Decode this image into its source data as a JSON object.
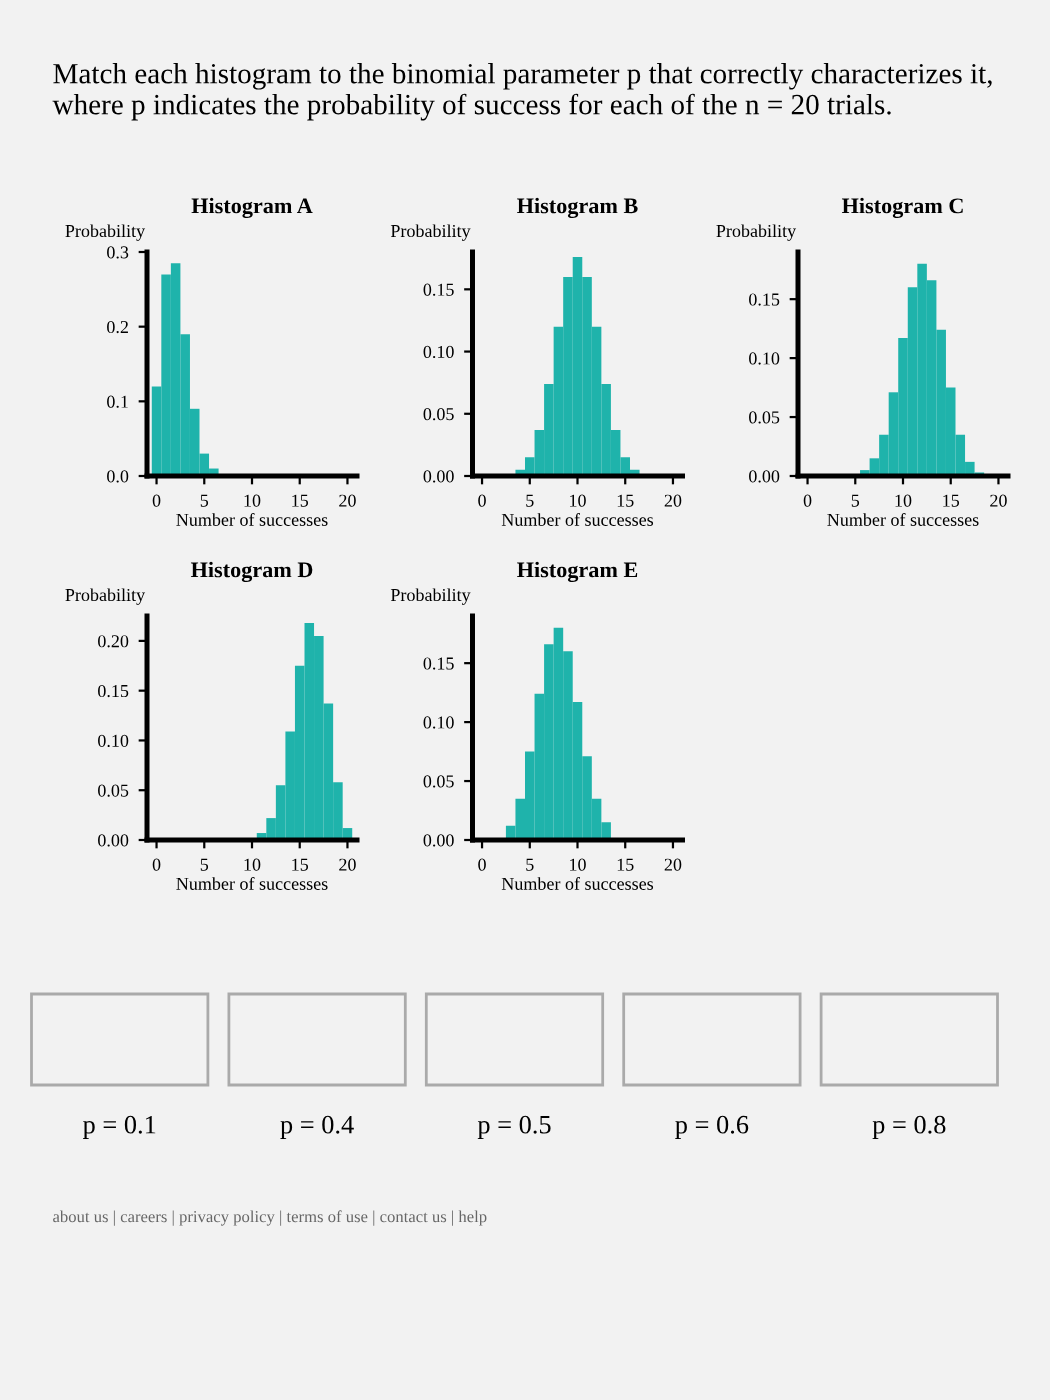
{
  "chart_data": [
    {
      "type": "histogram",
      "title": "Histogram A",
      "xlabel": "Number of successes",
      "ylabel": "Probability",
      "color": "#1fb3ab",
      "bins": [
        -0.5,
        0.5,
        1.5,
        2.5,
        3.5,
        4.5,
        5.5,
        6.5,
        7.5,
        8.5,
        9.5,
        10.5,
        11.5,
        12.5,
        13.5,
        14.5,
        15.5,
        16.5,
        17.5,
        18.5,
        19.5,
        20.5
      ],
      "values": [
        0.12,
        0.27,
        0.285,
        0.19,
        0.09,
        0.03,
        0.01,
        0,
        0,
        0,
        0,
        0,
        0,
        0,
        0,
        0,
        0,
        0,
        0,
        0,
        0
      ],
      "xlim": [
        -1,
        21
      ],
      "ylim": [
        0,
        0.3
      ],
      "xticks": [
        0,
        5,
        10,
        15,
        20
      ],
      "yticks": [
        {
          "value": 0,
          "label": "0.0"
        },
        {
          "value": 0.1,
          "label": "0.1"
        },
        {
          "value": 0.2,
          "label": "0.2"
        },
        {
          "value": 0.3,
          "label": "0.3"
        }
      ]
    },
    {
      "type": "histogram",
      "title": "Histogram B",
      "xlabel": "Number of successes",
      "ylabel": "Probability",
      "color": "#1fb3ab",
      "bins": [
        -0.5,
        0.5,
        1.5,
        2.5,
        3.5,
        4.5,
        5.5,
        6.5,
        7.5,
        8.5,
        9.5,
        10.5,
        11.5,
        12.5,
        13.5,
        14.5,
        15.5,
        16.5,
        17.5,
        18.5,
        19.5,
        20.5
      ],
      "values": [
        0,
        0,
        0,
        0.001,
        0.005,
        0.015,
        0.037,
        0.074,
        0.12,
        0.16,
        0.176,
        0.16,
        0.12,
        0.074,
        0.037,
        0.015,
        0.005,
        0.001,
        0,
        0,
        0
      ],
      "xlim": [
        -1,
        21
      ],
      "ylim": [
        0,
        0.18
      ],
      "xticks": [
        0,
        5,
        10,
        15,
        20
      ],
      "yticks": [
        {
          "value": 0,
          "label": "0.00"
        },
        {
          "value": 0.05,
          "label": "0.05"
        },
        {
          "value": 0.1,
          "label": "0.10"
        },
        {
          "value": 0.15,
          "label": "0.15"
        }
      ]
    },
    {
      "type": "histogram",
      "title": "Histogram C",
      "xlabel": "Number of successes",
      "ylabel": "Probability",
      "color": "#1fb3ab",
      "bins": [
        -0.5,
        0.5,
        1.5,
        2.5,
        3.5,
        4.5,
        5.5,
        6.5,
        7.5,
        8.5,
        9.5,
        10.5,
        11.5,
        12.5,
        13.5,
        14.5,
        15.5,
        16.5,
        17.5,
        18.5,
        19.5,
        20.5
      ],
      "values": [
        0,
        0,
        0,
        0,
        0,
        0.001,
        0.005,
        0.015,
        0.035,
        0.071,
        0.117,
        0.16,
        0.18,
        0.166,
        0.124,
        0.075,
        0.035,
        0.012,
        0.003,
        0,
        0
      ],
      "xlim": [
        -1,
        21
      ],
      "ylim": [
        0,
        0.19
      ],
      "xticks": [
        0,
        5,
        10,
        15,
        20
      ],
      "yticks": [
        {
          "value": 0,
          "label": "0.00"
        },
        {
          "value": 0.05,
          "label": "0.05"
        },
        {
          "value": 0.1,
          "label": "0.10"
        },
        {
          "value": 0.15,
          "label": "0.15"
        }
      ]
    },
    {
      "type": "histogram",
      "title": "Histogram D",
      "xlabel": "Number of successes",
      "ylabel": "Probability",
      "color": "#1fb3ab",
      "bins": [
        -0.5,
        0.5,
        1.5,
        2.5,
        3.5,
        4.5,
        5.5,
        6.5,
        7.5,
        8.5,
        9.5,
        10.5,
        11.5,
        12.5,
        13.5,
        14.5,
        15.5,
        16.5,
        17.5,
        18.5,
        19.5,
        20.5
      ],
      "values": [
        0,
        0,
        0,
        0,
        0,
        0,
        0,
        0,
        0,
        0,
        0,
        0.007,
        0.022,
        0.055,
        0.109,
        0.175,
        0.218,
        0.205,
        0.137,
        0.058,
        0.012
      ],
      "xlim": [
        -1,
        21
      ],
      "ylim": [
        0,
        0.225
      ],
      "xticks": [
        0,
        5,
        10,
        15,
        20
      ],
      "yticks": [
        {
          "value": 0,
          "label": "0.00"
        },
        {
          "value": 0.05,
          "label": "0.05"
        },
        {
          "value": 0.1,
          "label": "0.10"
        },
        {
          "value": 0.15,
          "label": "0.15"
        },
        {
          "value": 0.2,
          "label": "0.20"
        }
      ]
    },
    {
      "type": "histogram",
      "title": "Histogram E",
      "xlabel": "Number of successes",
      "ylabel": "Probability",
      "color": "#1fb3ab",
      "bins": [
        -0.5,
        0.5,
        1.5,
        2.5,
        3.5,
        4.5,
        5.5,
        6.5,
        7.5,
        8.5,
        9.5,
        10.5,
        11.5,
        12.5,
        13.5,
        14.5,
        15.5,
        16.5,
        17.5,
        18.5,
        19.5,
        20.5
      ],
      "values": [
        0,
        0,
        null,
        0.012,
        0.035,
        0.075,
        0.124,
        0.166,
        0.18,
        0.16,
        0.117,
        0.071,
        0.035,
        0.015,
        null,
        0.001,
        0,
        0,
        0,
        0,
        0
      ],
      "xlim": [
        -1,
        21
      ],
      "ylim": [
        0,
        0.19
      ],
      "xticks": [
        0,
        5,
        10,
        15,
        20
      ],
      "yticks": [
        {
          "value": 0,
          "label": "0.00"
        },
        {
          "value": 0.05,
          "label": "0.05"
        },
        {
          "value": 0.1,
          "label": "0.10"
        },
        {
          "value": 0.15,
          "label": "0.15"
        }
      ]
    },
    {
      "type": "other",
      "title": "Match each histogram to the binomial parameter p that correctly characterizes it, where p indicates the probability of success for each of the n = 20 trials.",
      "annotations": [
        "p = 0.1",
        "p = 0.4",
        "p = 0.5",
        "p = 0.6",
        "p = 0.8",
        "about us | careers | privacy policy | terms of use | contact us | help"
      ]
    }
  ]
}
